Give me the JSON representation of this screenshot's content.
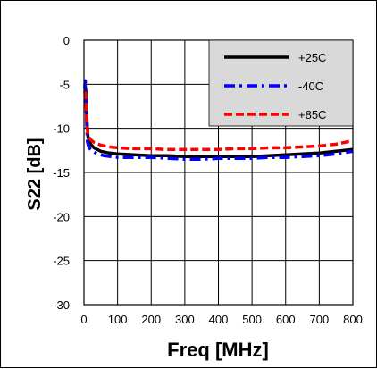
{
  "chart_data": {
    "type": "line",
    "title": "",
    "xlabel": "Freq [MHz]",
    "ylabel": "S22 [dB]",
    "xlim": [
      0,
      800
    ],
    "ylim": [
      -30,
      0
    ],
    "xticks": [
      0,
      100,
      200,
      300,
      400,
      500,
      600,
      700,
      800
    ],
    "yticks": [
      0,
      -5,
      -10,
      -15,
      -20,
      -25,
      -30
    ],
    "grid": true,
    "legend_position": "top-right",
    "series": [
      {
        "name": "+25C",
        "color": "#000000",
        "dash": "solid",
        "x": [
          2,
          5,
          8,
          12,
          20,
          30,
          50,
          75,
          100,
          150,
          200,
          250,
          300,
          350,
          400,
          450,
          500,
          550,
          600,
          650,
          700,
          750,
          800
        ],
        "y": [
          -5,
          -5.5,
          -8.5,
          -11,
          -11.8,
          -12.2,
          -12.6,
          -12.8,
          -12.9,
          -13.0,
          -13.1,
          -13.1,
          -13.2,
          -13.2,
          -13.2,
          -13.2,
          -13.2,
          -13.1,
          -13.0,
          -12.9,
          -12.8,
          -12.6,
          -12.4
        ]
      },
      {
        "name": "-40C",
        "color": "#0000ff",
        "dash": "dashdot",
        "x": [
          2,
          4,
          7,
          10,
          15,
          25,
          40,
          60,
          80,
          100,
          150,
          200,
          250,
          300,
          350,
          400,
          450,
          500,
          550,
          600,
          650,
          700,
          750,
          800
        ],
        "y": [
          -5.5,
          -4.6,
          -8.5,
          -11.5,
          -12.2,
          -12.6,
          -12.9,
          -13.1,
          -13.2,
          -13.3,
          -13.3,
          -13.3,
          -13.4,
          -13.5,
          -13.5,
          -13.4,
          -13.4,
          -13.4,
          -13.3,
          -13.3,
          -13.2,
          -13.1,
          -12.9,
          -12.6
        ]
      },
      {
        "name": "+85C",
        "color": "#ff0000",
        "dash": "dashed",
        "x": [
          2,
          5,
          8,
          12,
          20,
          30,
          50,
          75,
          100,
          150,
          200,
          250,
          300,
          350,
          400,
          450,
          500,
          550,
          600,
          650,
          700,
          750,
          800
        ],
        "y": [
          -5.8,
          -6.3,
          -9.0,
          -10.8,
          -11.3,
          -11.6,
          -11.9,
          -12.1,
          -12.2,
          -12.3,
          -12.3,
          -12.4,
          -12.4,
          -12.4,
          -12.4,
          -12.3,
          -12.3,
          -12.2,
          -12.2,
          -12.1,
          -12.0,
          -11.8,
          -11.4
        ]
      }
    ]
  }
}
